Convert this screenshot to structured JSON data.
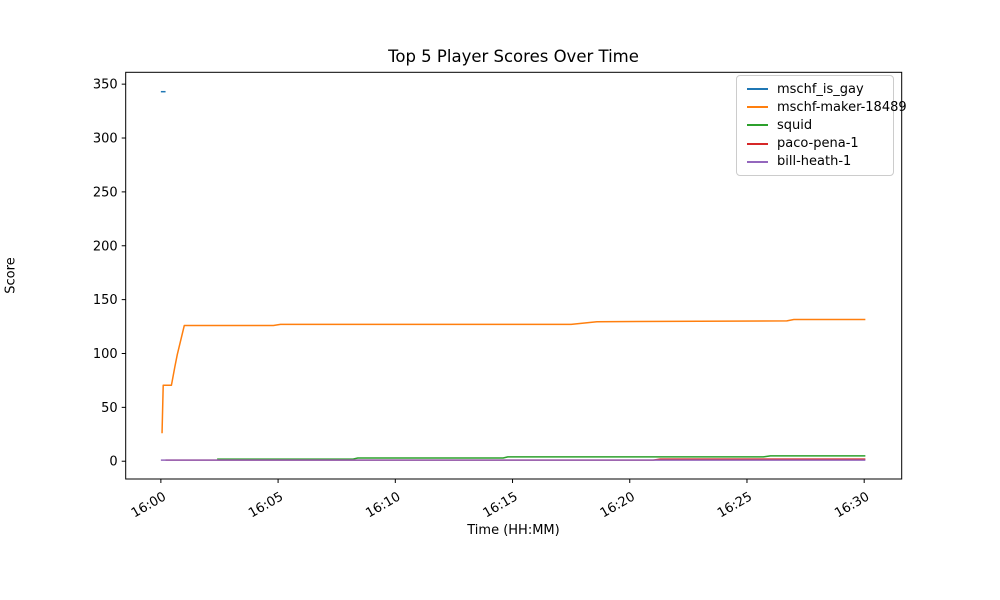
{
  "chart_data": {
    "type": "line",
    "title": "Top 5 Player Scores Over Time",
    "xlabel": "Time (HH:MM)",
    "ylabel": "Score",
    "x_axis": {
      "unit": "minutes after 16:00",
      "lim": [
        -1.5,
        31.6
      ],
      "tick_rotation_deg": 30,
      "ticks": [
        {
          "t": 0,
          "label": "16:00"
        },
        {
          "t": 5,
          "label": "16:05"
        },
        {
          "t": 10,
          "label": "16:10"
        },
        {
          "t": 15,
          "label": "16:15"
        },
        {
          "t": 20,
          "label": "16:20"
        },
        {
          "t": 25,
          "label": "16:25"
        },
        {
          "t": 30,
          "label": "16:30"
        }
      ]
    },
    "y_axis": {
      "lim": [
        -16.5,
        361
      ],
      "ticks": [
        0,
        50,
        100,
        150,
        200,
        250,
        300,
        350
      ]
    },
    "legend": {
      "position": "upper right"
    },
    "colors": {
      "axes": "#000000",
      "text": "#000000",
      "legend_border": "#cccccc",
      "background": "#ffffff"
    },
    "series": [
      {
        "name": "mschf_is_gay",
        "color": "#1f77b4",
        "points": [
          [
            0.0,
            343
          ],
          [
            0.2,
            343
          ]
        ]
      },
      {
        "name": "mschf-maker-18489",
        "color": "#ff7f0e",
        "points": [
          [
            0.05,
            26
          ],
          [
            0.1,
            70.5
          ],
          [
            0.45,
            70.5
          ],
          [
            0.6,
            88
          ],
          [
            0.7,
            99
          ],
          [
            1.0,
            126
          ],
          [
            4.8,
            126
          ],
          [
            5.1,
            127
          ],
          [
            17.5,
            127
          ],
          [
            18.6,
            129.5
          ],
          [
            26.7,
            130.3
          ],
          [
            27.0,
            131.5
          ],
          [
            30.05,
            131.5
          ]
        ]
      },
      {
        "name": "squid",
        "color": "#2ca02c",
        "points": [
          [
            2.4,
            2
          ],
          [
            8.2,
            2
          ],
          [
            8.4,
            3
          ],
          [
            14.6,
            3
          ],
          [
            14.8,
            4
          ],
          [
            25.7,
            4
          ],
          [
            26.0,
            5
          ],
          [
            30.05,
            5
          ]
        ]
      },
      {
        "name": "paco-pena-1",
        "color": "#d62728",
        "points": [
          [
            0.2,
            1
          ],
          [
            21.0,
            1
          ],
          [
            21.3,
            2
          ],
          [
            30.05,
            2
          ]
        ]
      },
      {
        "name": "bill-heath-1",
        "color": "#9467bd",
        "points": [
          [
            0.0,
            1
          ],
          [
            30.05,
            1
          ]
        ]
      }
    ]
  }
}
